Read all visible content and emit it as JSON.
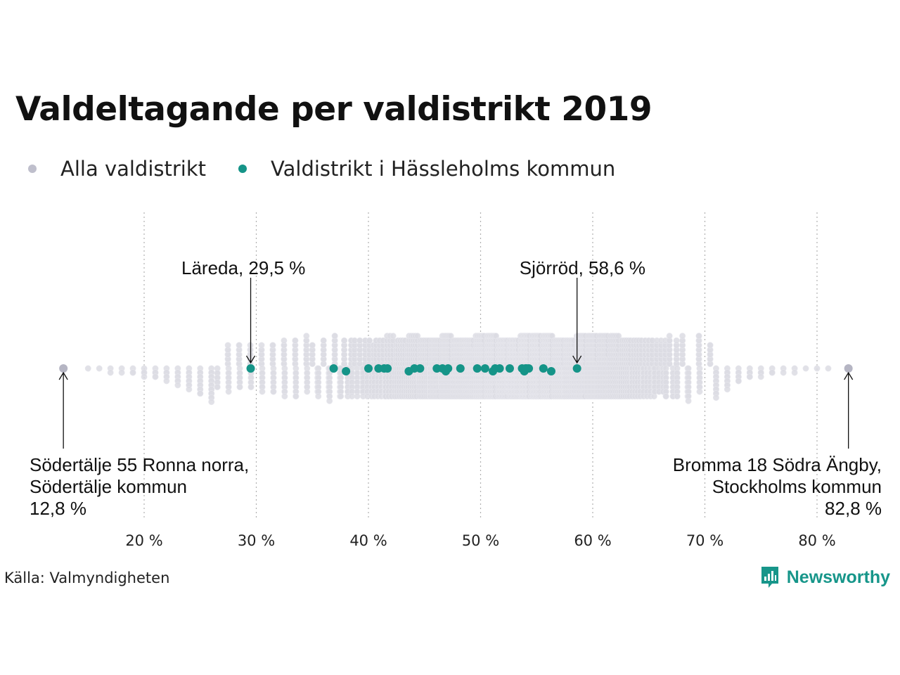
{
  "title": "Valdeltagande per valdistrikt 2019",
  "legend": [
    {
      "label": "Alla valdistrikt",
      "color": "#bfbfcc"
    },
    {
      "label": "Valdistrikt i Hässleholms kommun",
      "color": "#159488"
    }
  ],
  "source": "Källa: Valmyndigheten",
  "brand": {
    "name": "Newsworthy",
    "icon": "newsworthy-logo-icon"
  },
  "colors": {
    "all": "#dcdce3",
    "highlight": "#159488",
    "marker": "#b5b5c3",
    "grid": "#b0b0b0"
  },
  "chart_data": {
    "type": "scatter",
    "subtype": "beeswarm",
    "title": "Valdeltagande per valdistrikt 2019",
    "xlim": [
      12,
      83.5
    ],
    "x_ticks": [
      20,
      30,
      40,
      50,
      60,
      70,
      80
    ],
    "x_tick_labels": [
      "20 %",
      "30 %",
      "40 %",
      "50 %",
      "60 %",
      "70 %",
      "80 %"
    ],
    "grid": "vertical dotted",
    "legend_position": "top-left",
    "series": [
      {
        "name": "Alla valdistrikt",
        "density_bins": [
          {
            "x": 12.8,
            "count": 1
          },
          {
            "x": 15,
            "count": 1
          },
          {
            "x": 16,
            "count": 1
          },
          {
            "x": 17,
            "count": 2
          },
          {
            "x": 18,
            "count": 2
          },
          {
            "x": 19,
            "count": 3
          },
          {
            "x": 20,
            "count": 4
          },
          {
            "x": 21,
            "count": 5
          },
          {
            "x": 22,
            "count": 6
          },
          {
            "x": 23,
            "count": 8
          },
          {
            "x": 24,
            "count": 10
          },
          {
            "x": 25,
            "count": 13
          },
          {
            "x": 26,
            "count": 16
          },
          {
            "x": 27,
            "count": 18
          },
          {
            "x": 28,
            "count": 20
          },
          {
            "x": 29,
            "count": 18
          },
          {
            "x": 30,
            "count": 18
          },
          {
            "x": 31,
            "count": 20
          },
          {
            "x": 32,
            "count": 22
          },
          {
            "x": 33,
            "count": 24
          },
          {
            "x": 34,
            "count": 26
          },
          {
            "x": 35,
            "count": 30
          },
          {
            "x": 36,
            "count": 34
          },
          {
            "x": 37,
            "count": 40
          },
          {
            "x": 38,
            "count": 48
          },
          {
            "x": 39,
            "count": 58
          },
          {
            "x": 40,
            "count": 70
          },
          {
            "x": 41,
            "count": 84
          },
          {
            "x": 42,
            "count": 100
          },
          {
            "x": 43,
            "count": 118
          },
          {
            "x": 44,
            "count": 136
          },
          {
            "x": 45,
            "count": 156
          },
          {
            "x": 46,
            "count": 176
          },
          {
            "x": 47,
            "count": 196
          },
          {
            "x": 48,
            "count": 216
          },
          {
            "x": 49,
            "count": 236
          },
          {
            "x": 50,
            "count": 256
          },
          {
            "x": 51,
            "count": 266
          },
          {
            "x": 52,
            "count": 274
          },
          {
            "x": 53,
            "count": 282
          },
          {
            "x": 54,
            "count": 290
          },
          {
            "x": 55,
            "count": 280
          },
          {
            "x": 56,
            "count": 266
          },
          {
            "x": 57,
            "count": 252
          },
          {
            "x": 58,
            "count": 236
          },
          {
            "x": 59,
            "count": 218
          },
          {
            "x": 60,
            "count": 196
          },
          {
            "x": 61,
            "count": 172
          },
          {
            "x": 62,
            "count": 148
          },
          {
            "x": 63,
            "count": 126
          },
          {
            "x": 64,
            "count": 104
          },
          {
            "x": 65,
            "count": 84
          },
          {
            "x": 66,
            "count": 66
          },
          {
            "x": 67,
            "count": 50
          },
          {
            "x": 68,
            "count": 38
          },
          {
            "x": 69,
            "count": 28
          },
          {
            "x": 70,
            "count": 20
          },
          {
            "x": 71,
            "count": 14
          },
          {
            "x": 72,
            "count": 10
          },
          {
            "x": 73,
            "count": 7
          },
          {
            "x": 74,
            "count": 5
          },
          {
            "x": 75,
            "count": 4
          },
          {
            "x": 76,
            "count": 3
          },
          {
            "x": 77,
            "count": 2
          },
          {
            "x": 78,
            "count": 2
          },
          {
            "x": 79,
            "count": 1
          },
          {
            "x": 80,
            "count": 1
          },
          {
            "x": 81,
            "count": 1
          },
          {
            "x": 82.8,
            "count": 1
          }
        ]
      },
      {
        "name": "Valdistrikt i Hässleholms kommun",
        "x": [
          29.5,
          36.9,
          38.0,
          40.0,
          40.9,
          41.4,
          41.7,
          43.6,
          44.1,
          44.6,
          46.1,
          46.6,
          46.9,
          47.1,
          48.2,
          49.7,
          50.4,
          51.1,
          51.3,
          51.7,
          52.6,
          53.7,
          53.9,
          54.0,
          54.1,
          54.3,
          55.6,
          56.3,
          58.6
        ]
      }
    ],
    "annotations": [
      {
        "label": "Läreda, 29,5 %",
        "x": 29.5,
        "lines": [
          "Läreda, 29,5 %"
        ]
      },
      {
        "label": "Sjörröd, 58,6 %",
        "x": 58.6,
        "lines": [
          "Sjörröd, 58,6 %"
        ]
      },
      {
        "label": "Södertälje 55 Ronna norra, Södertälje kommun 12,8 %",
        "x": 12.8,
        "lines": [
          "Södertälje 55 Ronna norra,",
          "Södertälje kommun",
          "12,8 %"
        ]
      },
      {
        "label": "Bromma 18 Södra Ängby, Stockholms kommun 82,8 %",
        "x": 82.8,
        "lines": [
          "Bromma 18 Södra Ängby,",
          "Stockholms kommun",
          "82,8 %"
        ]
      }
    ]
  }
}
